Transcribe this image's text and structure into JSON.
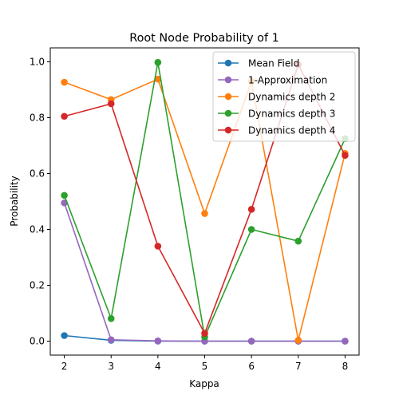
{
  "chart_data": {
    "type": "line",
    "title": "Root Node Probability of 1",
    "xlabel": "Kappa",
    "ylabel": "Probability",
    "x": [
      2,
      3,
      4,
      5,
      6,
      7,
      8
    ],
    "xlim": [
      1.7,
      8.3
    ],
    "ylim": [
      -0.05,
      1.05
    ],
    "xticks": [
      "2",
      "3",
      "4",
      "5",
      "6",
      "7",
      "8"
    ],
    "yticks": [
      "0.0",
      "0.2",
      "0.4",
      "0.6",
      "0.8",
      "1.0"
    ],
    "grid": false,
    "legend_position": "top-right",
    "series": [
      {
        "name": "Mean Field",
        "color": "#1f77b4",
        "values": [
          0.02,
          0.003,
          0.0,
          0.0,
          0.0,
          0.0,
          0.0
        ]
      },
      {
        "name": "1-Approximation",
        "color": "#9467bd",
        "values": [
          0.495,
          0.005,
          0.001,
          0.0,
          0.0,
          0.0,
          0.0
        ]
      },
      {
        "name": "Dynamics depth 2",
        "color": "#ff7f0e",
        "values": [
          0.927,
          0.865,
          0.938,
          0.457,
          0.93,
          0.003,
          0.672
        ]
      },
      {
        "name": "Dynamics depth 3",
        "color": "#2ca02c",
        "values": [
          0.522,
          0.081,
          0.998,
          0.015,
          0.4,
          0.358,
          0.725
        ]
      },
      {
        "name": "Dynamics depth 4",
        "color": "#d62728",
        "values": [
          0.805,
          0.85,
          0.34,
          0.028,
          0.472,
          0.99,
          0.665
        ]
      }
    ]
  }
}
